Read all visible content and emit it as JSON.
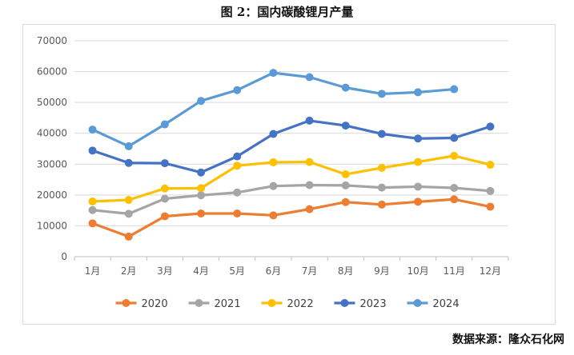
{
  "page": {
    "title": "图 2：国内碳酸锂月产量",
    "source": "数据来源：隆众石化网"
  },
  "chart_data": {
    "type": "line",
    "title": "图 2：国内碳酸锂月产量",
    "xlabel": "",
    "ylabel": "",
    "ylim": [
      0,
      70000
    ],
    "yticks": [
      0,
      10000,
      20000,
      30000,
      40000,
      50000,
      60000,
      70000
    ],
    "grid": true,
    "legend_position": "bottom",
    "categories": [
      "1月",
      "2月",
      "3月",
      "4月",
      "5月",
      "6月",
      "7月",
      "8月",
      "9月",
      "10月",
      "11月",
      "12月"
    ],
    "series": [
      {
        "name": "2020",
        "color": "#ED7D31",
        "values": [
          10800,
          6500,
          13100,
          14000,
          14000,
          13400,
          15400,
          17700,
          16900,
          17800,
          18600,
          16200
        ]
      },
      {
        "name": "2021",
        "color": "#A5A5A5",
        "values": [
          15100,
          13900,
          18800,
          19900,
          20800,
          22900,
          23200,
          23100,
          22400,
          22700,
          22300,
          21300
        ]
      },
      {
        "name": "2022",
        "color": "#FFC000",
        "values": [
          17900,
          18400,
          22100,
          22200,
          29500,
          30600,
          30700,
          26700,
          28800,
          30700,
          32700,
          29800
        ]
      },
      {
        "name": "2023",
        "color": "#4472C4",
        "values": [
          34400,
          30400,
          30300,
          27300,
          32500,
          39800,
          44100,
          42500,
          39800,
          38300,
          38500,
          42200
        ]
      },
      {
        "name": "2024",
        "color": "#5B9BD5",
        "values": [
          41200,
          35800,
          42900,
          50500,
          54000,
          59600,
          58200,
          54800,
          52800,
          53300,
          54300,
          null
        ]
      }
    ]
  }
}
